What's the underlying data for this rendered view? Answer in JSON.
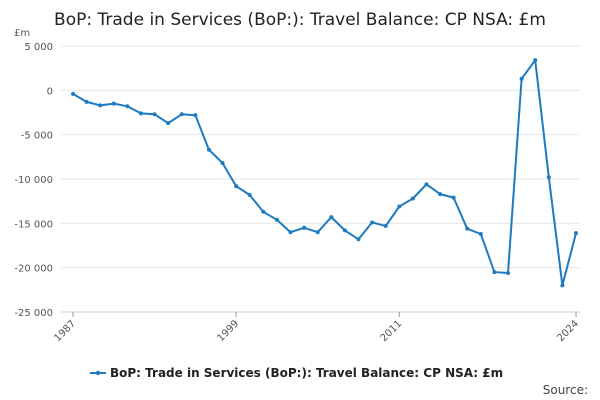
{
  "chart_data": {
    "type": "line",
    "title": "BoP: Trade in Services (BoP:): Travel Balance: CP NSA: £m",
    "ylabel": "£m",
    "xlabel": "",
    "ylim": [
      -25000,
      5000
    ],
    "xlim": [
      1987,
      2024
    ],
    "y_ticks": [
      5000,
      0,
      -5000,
      -10000,
      -15000,
      -20000,
      -25000
    ],
    "y_tick_labels": [
      "5 000",
      "0",
      "-5 000",
      "-10 000",
      "-15 000",
      "-20 000",
      "-25 000"
    ],
    "x_ticks": [
      1987,
      1999,
      2011,
      2024
    ],
    "x_tick_labels": [
      "1987",
      "1999",
      "2011",
      "2024"
    ],
    "grid": "horizontal",
    "legend_position": "bottom",
    "series": [
      {
        "name": "BoP: Trade in Services (BoP:): Travel Balance: CP NSA: £m",
        "color": "#1f7bbf",
        "x": [
          1987,
          1988,
          1989,
          1990,
          1991,
          1992,
          1993,
          1994,
          1995,
          1996,
          1997,
          1998,
          1999,
          2000,
          2001,
          2002,
          2003,
          2004,
          2005,
          2006,
          2007,
          2008,
          2009,
          2010,
          2011,
          2012,
          2013,
          2014,
          2015,
          2016,
          2017,
          2018,
          2019,
          2020,
          2021,
          2022,
          2023,
          2024
        ],
        "values": [
          -400,
          -1300,
          -1700,
          -1500,
          -1800,
          -2600,
          -2700,
          -3700,
          -2700,
          -2800,
          -6700,
          -8200,
          -10800,
          -11800,
          -13700,
          -14600,
          -16000,
          -15500,
          -16000,
          -14300,
          -15800,
          -16800,
          -14900,
          -15300,
          -13100,
          -12200,
          -10600,
          -11700,
          -12100,
          -15600,
          -16200,
          -20500,
          -20600,
          1300,
          3400,
          -9800,
          -22000,
          -16100
        ]
      }
    ]
  },
  "legend_label": "BoP: Trade in Services (BoP:): Travel Balance: CP NSA: £m",
  "source_label": "Source:"
}
